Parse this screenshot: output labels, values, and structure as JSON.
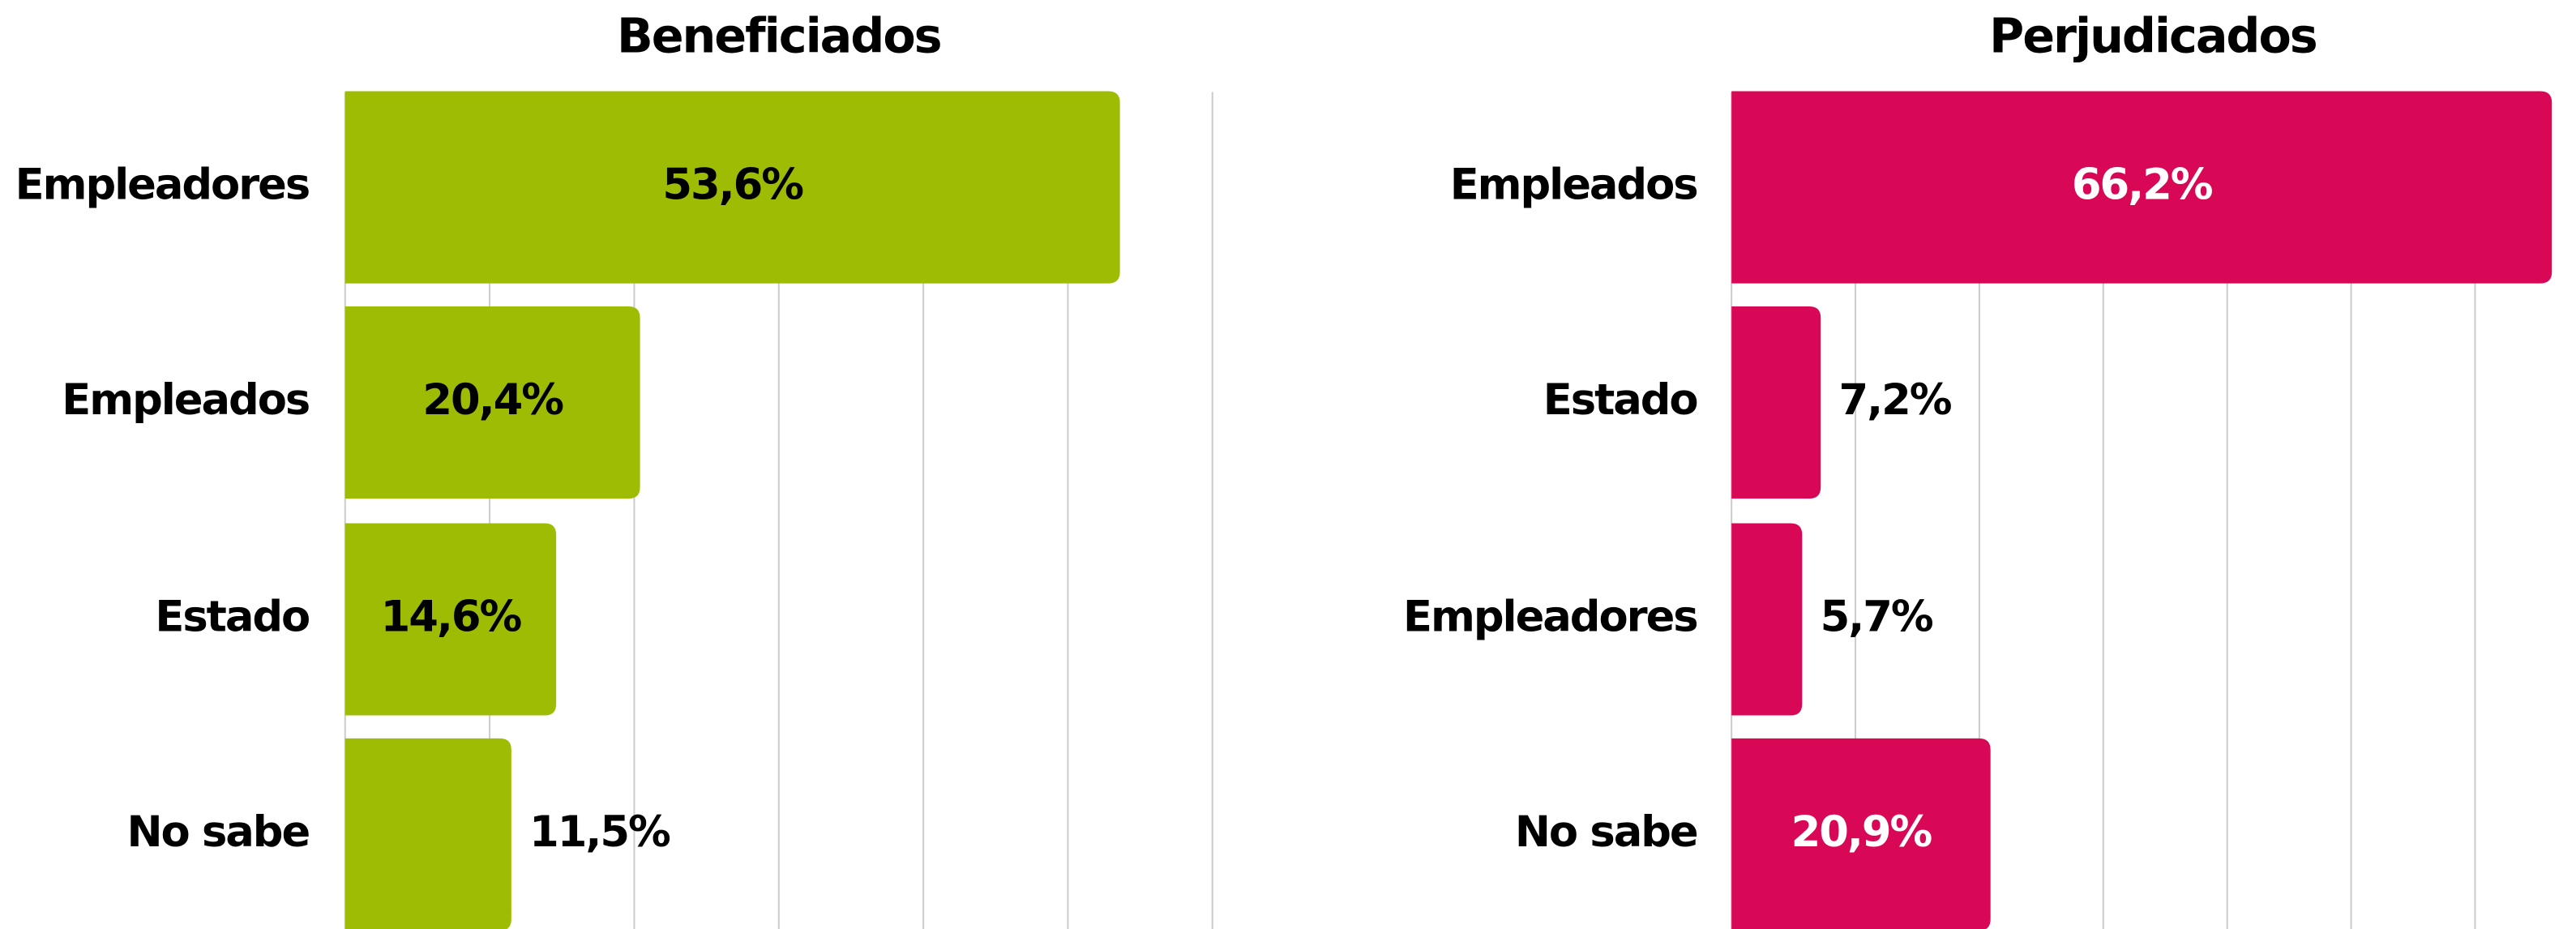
{
  "chart_data": [
    {
      "type": "barh",
      "title": "Beneficiados",
      "categories": [
        "Empleadores",
        "Empleados",
        "Estado",
        "No sabe"
      ],
      "values": [
        53.6,
        20.4,
        14.6,
        11.5
      ],
      "value_labels": [
        "53,6%",
        "20,4%",
        "14,6%",
        "11,5%"
      ],
      "color": "#9ebc04",
      "label_color": "#000000",
      "xlim": [
        0,
        60
      ],
      "xticks": [
        0,
        10,
        20,
        30,
        40,
        50,
        60
      ],
      "grid": true
    },
    {
      "type": "barh",
      "title": "Perjudicados",
      "categories": [
        "Empleados",
        "Estado",
        "Empleadores",
        "No sabe"
      ],
      "values": [
        66.2,
        7.2,
        5.7,
        20.9
      ],
      "value_labels": [
        "66,2%",
        "7,2%",
        "5,7%",
        "20,9%"
      ],
      "color": "#d90857",
      "label_color": "#ffffff",
      "xlim": [
        0,
        68
      ],
      "xticks": [
        0,
        10,
        20,
        30,
        40,
        50,
        60
      ],
      "grid": true
    }
  ]
}
